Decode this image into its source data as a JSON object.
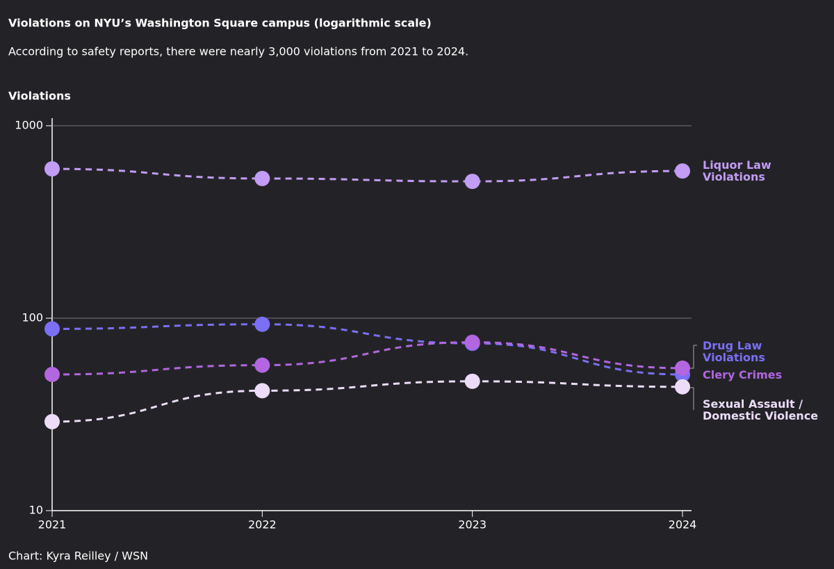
{
  "chart_data": {
    "type": "line",
    "title": "Violations on NYU’s Washington Square campus (logarithmic scale)",
    "subtitle": "According to safety reports, there were nearly 3,000 violations from 2021 to 2024.",
    "y_label": "Violations",
    "source": "Chart: Kyra Reilley / WSN",
    "x": [
      2021,
      2022,
      2023,
      2024
    ],
    "xlim": [
      2021,
      2024
    ],
    "xticks": [
      2021,
      2022,
      2023,
      2024
    ],
    "ylim": [
      10,
      1000
    ],
    "yticks": [
      10,
      100,
      1000
    ],
    "log_scale": true,
    "grid": true,
    "series": [
      {
        "name": "Liquor Law Violations",
        "color": "#c39cf5",
        "values": [
          597,
          532,
          514,
          582
        ]
      },
      {
        "name": "Drug Law Violations",
        "color": "#7b6ff5",
        "values": [
          88,
          93,
          74,
          51
        ]
      },
      {
        "name": "Clery Crimes",
        "color": "#b266e0",
        "values": [
          51,
          57,
          75,
          55
        ]
      },
      {
        "name": "Sexual Assault / Domestic Violence",
        "color": "#ecdcf7",
        "values": [
          29,
          42,
          47,
          44
        ]
      }
    ]
  }
}
